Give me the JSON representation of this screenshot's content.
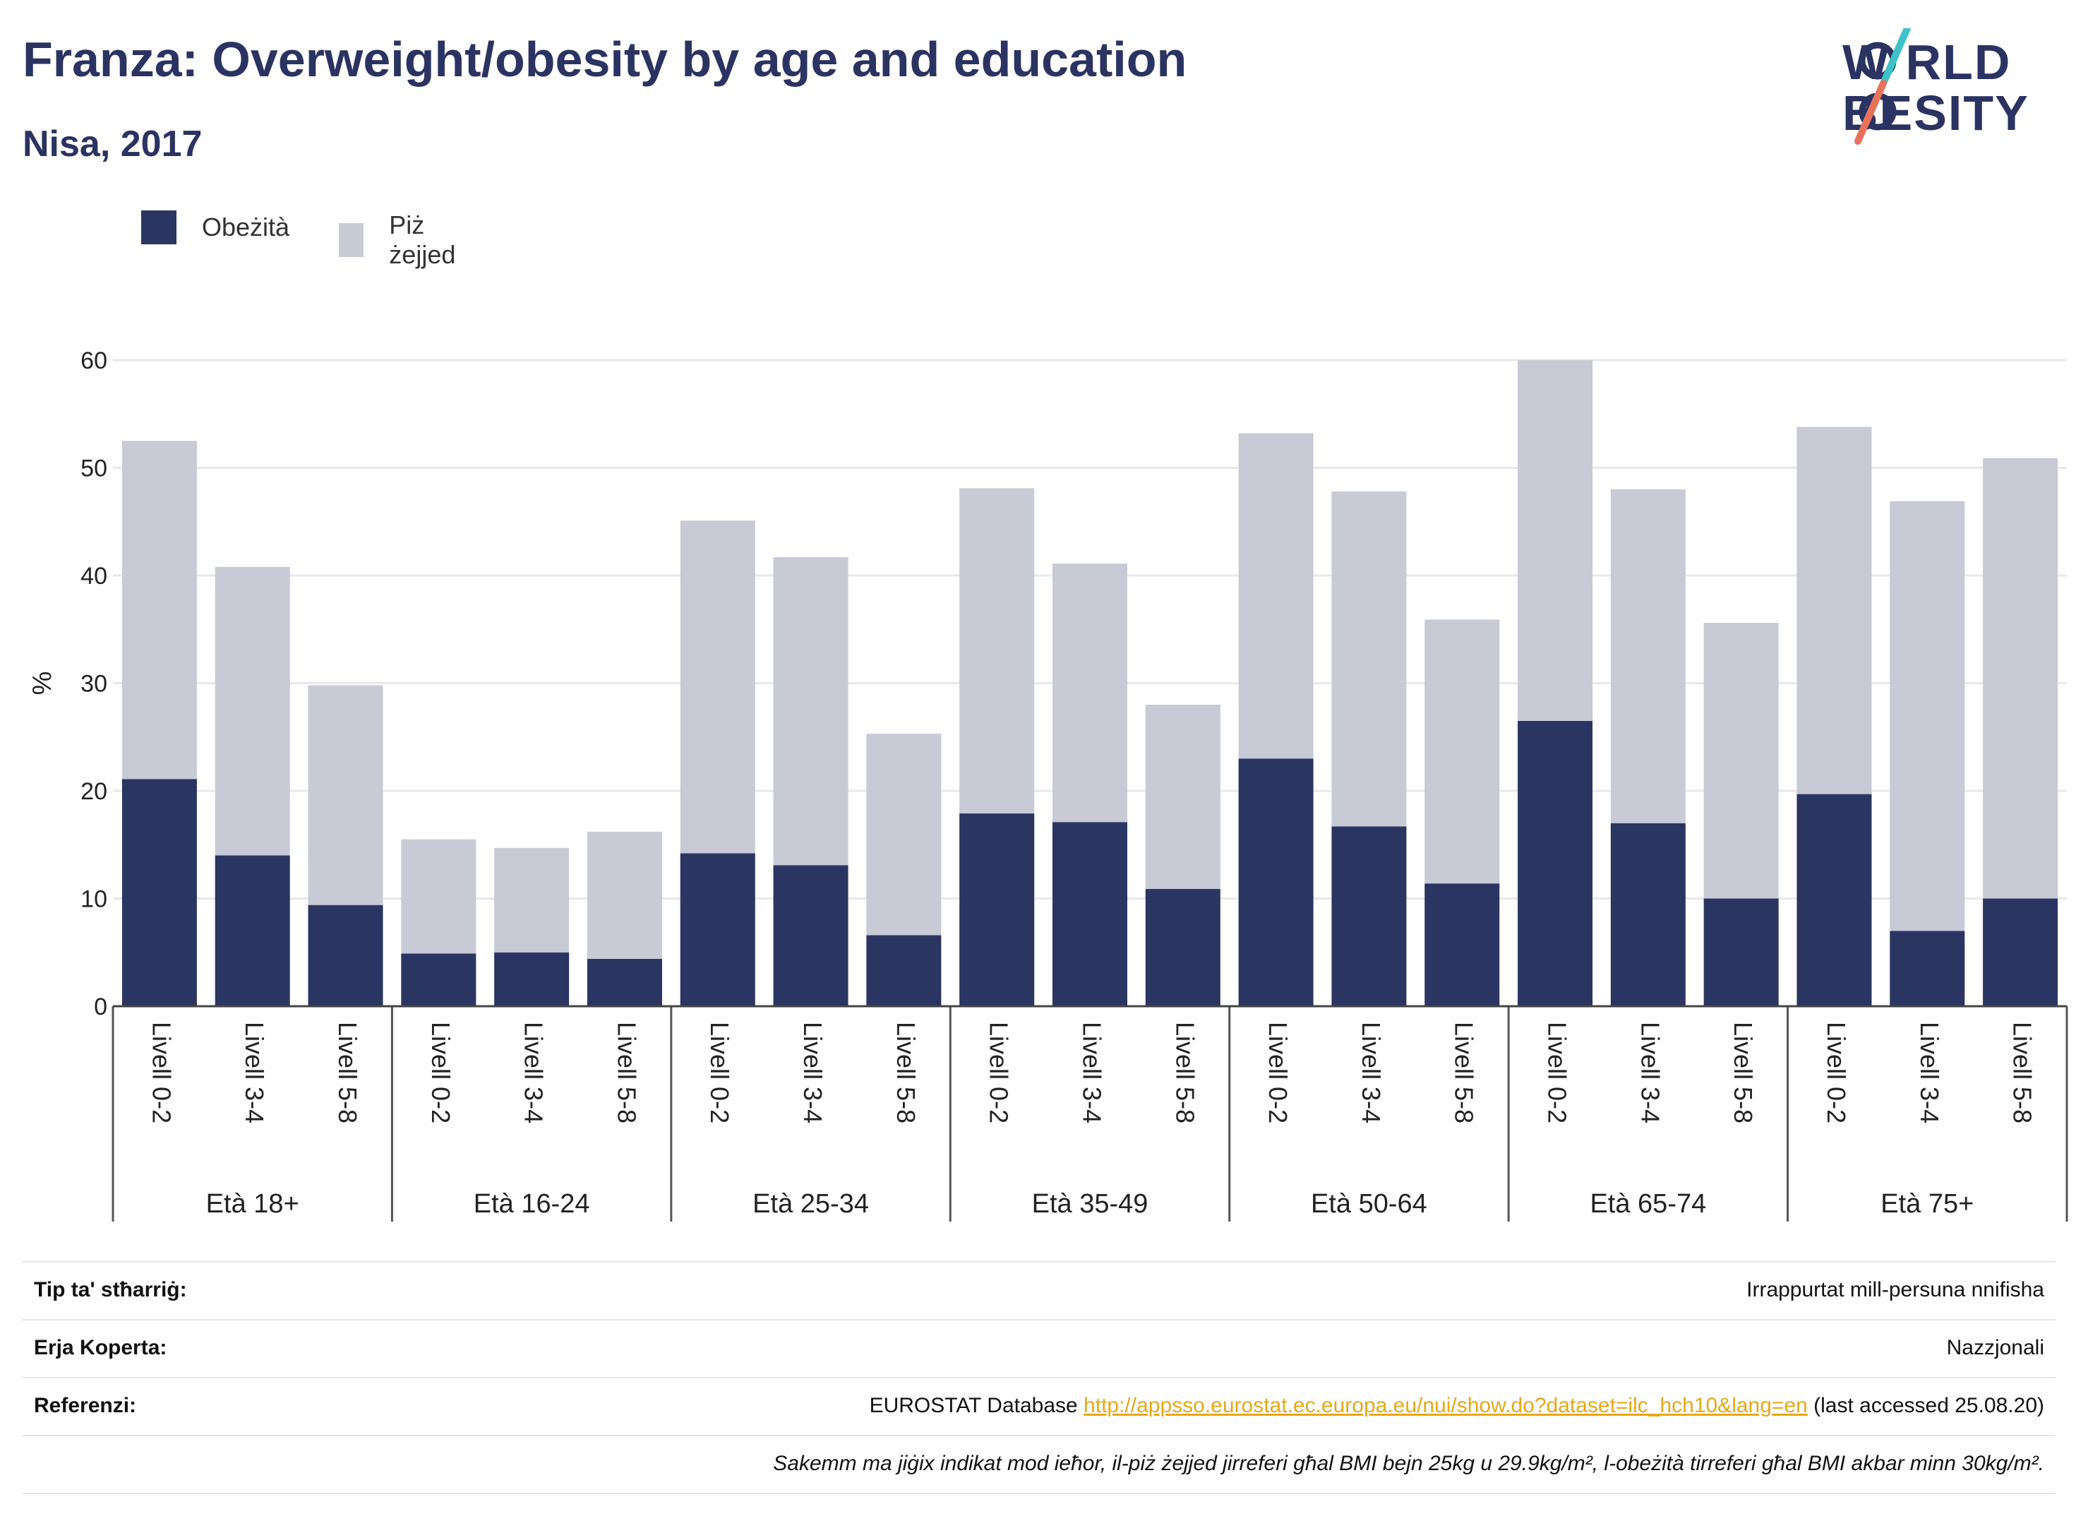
{
  "header": {
    "title": "Franza: Overweight/obesity by age and education",
    "subtitle": "Nisa, 2017"
  },
  "logo": {
    "line1": "W RLD",
    "line2": "BESITY",
    "colors": {
      "text": "#2a3361",
      "slash_top": "#3ec1c9",
      "slash_bottom": "#e8735a"
    }
  },
  "legend": [
    {
      "label": "Obeżità",
      "color": "#2a3561"
    },
    {
      "label": "Piż żejjed",
      "color": "#c8cad6"
    }
  ],
  "chart_data": {
    "type": "bar",
    "stacked": true,
    "ylabel": "%",
    "ylim": [
      0,
      60
    ],
    "yticks": [
      0,
      10,
      20,
      30,
      40,
      50,
      60
    ],
    "grid": true,
    "legend_position": "top-left",
    "groups": [
      {
        "label": "Età 18+",
        "categories": [
          "Livell 0-2",
          "Livell 3-4",
          "Livell 5-8"
        ]
      },
      {
        "label": "Età 16-24",
        "categories": [
          "Livell 0-2",
          "Livell 3-4",
          "Livell 5-8"
        ]
      },
      {
        "label": "Età 25-34",
        "categories": [
          "Livell 0-2",
          "Livell 3-4",
          "Livell 5-8"
        ]
      },
      {
        "label": "Età 35-49",
        "categories": [
          "Livell 0-2",
          "Livell 3-4",
          "Livell 5-8"
        ]
      },
      {
        "label": "Età 50-64",
        "categories": [
          "Livell 0-2",
          "Livell 3-4",
          "Livell 5-8"
        ]
      },
      {
        "label": "Età 65-74",
        "categories": [
          "Livell 0-2",
          "Livell 3-4",
          "Livell 5-8"
        ]
      },
      {
        "label": "Età 75+",
        "categories": [
          "Livell 0-2",
          "Livell 3-4",
          "Livell 5-8"
        ]
      }
    ],
    "series": [
      {
        "name": "Obeżità",
        "color": "#2a3561",
        "values": [
          21.1,
          14.0,
          9.4,
          4.9,
          5.0,
          4.4,
          14.2,
          13.1,
          6.6,
          17.9,
          17.1,
          10.9,
          23.0,
          16.7,
          11.4,
          26.5,
          17.0,
          10.0,
          19.7,
          7.0,
          10.0
        ]
      },
      {
        "name": "Piż żejjed",
        "color": "#c8cad6",
        "values": [
          31.4,
          26.8,
          20.4,
          10.6,
          9.7,
          11.8,
          30.9,
          28.6,
          18.7,
          30.2,
          24.0,
          17.1,
          30.2,
          31.1,
          24.5,
          33.5,
          31.0,
          25.6,
          34.1,
          39.9,
          40.9
        ]
      }
    ]
  },
  "info": {
    "rows": [
      {
        "key": "Tip ta' stħarriġ:",
        "value": "Irrappurtat mill-persuna nnifisha"
      },
      {
        "key": "Erja Koperta:",
        "value": "Nazzjonali"
      },
      {
        "key": "Referenzi:",
        "value_prefix": "EUROSTAT Database ",
        "link": "http://appsso.eurostat.ec.europa.eu/nui/show.do?dataset=ilc_hch10&lang=en",
        "value_suffix": " (last accessed 25.08.20)"
      }
    ],
    "note": "Sakemm ma jiġix indikat mod ieħor, il-piż żejjed jirreferi għal BMI bejn 25kg u 29.9kg/m², l-obeżità tirreferi għal BMI akbar minn 30kg/m²."
  }
}
